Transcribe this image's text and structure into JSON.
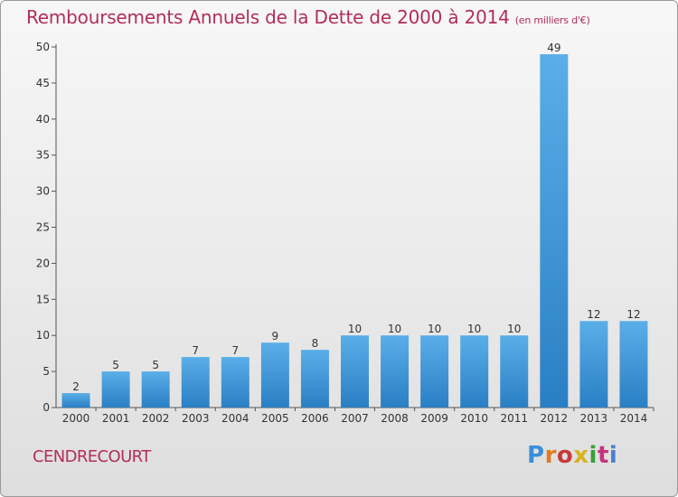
{
  "title": "Remboursements Annuels de la Dette de 2000 à 2014",
  "subtitle": "(en milliers d'€)",
  "city": "CENDRECOURT",
  "logo": {
    "text": "Proxiti",
    "colors": [
      "#3a8fd8",
      "#e07b22",
      "#c73a3a",
      "#d9b21f",
      "#3aa03a",
      "#c7327a",
      "#4a7fd0"
    ]
  },
  "colors": {
    "title": "#b22e5a",
    "bar_top": "#5aaee8",
    "bar_bottom": "#2a7fc4",
    "axis": "#555555"
  },
  "chart_data": {
    "type": "bar",
    "title": "Remboursements Annuels de la Dette de 2000 à 2014",
    "subtitle": "(en milliers d'€)",
    "categories": [
      "2000",
      "2001",
      "2002",
      "2003",
      "2004",
      "2005",
      "2006",
      "2007",
      "2008",
      "2009",
      "2010",
      "2011",
      "2012",
      "2013",
      "2014"
    ],
    "values": [
      2,
      5,
      5,
      7,
      7,
      9,
      8,
      10,
      10,
      10,
      10,
      10,
      49,
      12,
      12
    ],
    "ylim": [
      0,
      50
    ],
    "yticks": [
      0,
      5,
      10,
      15,
      20,
      25,
      30,
      35,
      40,
      45,
      50
    ],
    "grid": false,
    "legend": "none"
  }
}
